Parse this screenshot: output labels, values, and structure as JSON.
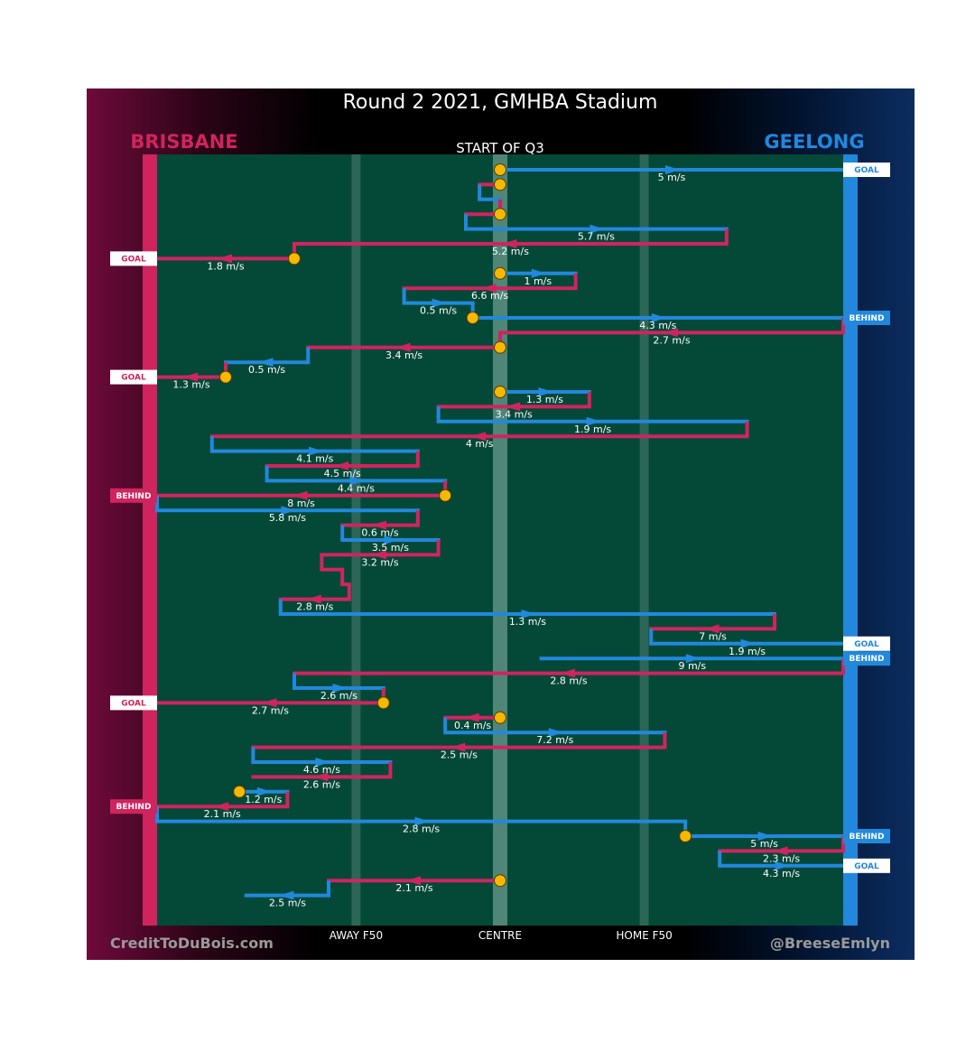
{
  "chart_data": {
    "type": "line",
    "title": "Round 2 2021, GMHBA Stadium",
    "subtitle": "START OF Q3",
    "teams": {
      "left": {
        "name": "BRISBANE",
        "color": "#d0245f"
      },
      "right": {
        "name": "GEELONG",
        "color": "#2188dc"
      }
    },
    "x_axis": {
      "range": [
        0,
        100
      ],
      "ticks": [
        {
          "label": "AWAY F50",
          "value": 29
        },
        {
          "label": "CENTRE",
          "value": 50
        },
        {
          "label": "HOME F50",
          "value": 71
        }
      ]
    },
    "credits": {
      "left": "CreditToDuBois.com",
      "right": "@BreeseEmlyn"
    },
    "colors": {
      "field": "#044838",
      "brisbane": "#d0245f",
      "geelong": "#2188dc",
      "ball": "#f5b800"
    },
    "events": [
      {
        "team": "Geelong",
        "start": 50,
        "end": 100,
        "speed": "5 m/s",
        "outcome": "GOAL"
      },
      {
        "team": "Brisbane",
        "start": 50,
        "end": 47
      },
      {
        "team": "Geelong",
        "start": 47,
        "end": 50
      },
      {
        "team": "Brisbane",
        "start": 50,
        "end": 45
      },
      {
        "team": "Geelong",
        "start": 45,
        "end": 83,
        "speed": "5.7 m/s"
      },
      {
        "team": "Brisbane",
        "start": 83,
        "end": 20,
        "speed": "5.2 m/s"
      },
      {
        "team": "Brisbane",
        "start": 20,
        "end": 0,
        "speed": "1.8 m/s",
        "outcome": "GOAL"
      },
      {
        "team": "Geelong",
        "start": 50,
        "end": 61,
        "speed": "1 m/s"
      },
      {
        "team": "Brisbane",
        "start": 61,
        "end": 36,
        "speed": "6.6 m/s"
      },
      {
        "team": "Geelong",
        "start": 36,
        "end": 46,
        "speed": "0.5 m/s"
      },
      {
        "team": "Geelong",
        "start": 46,
        "end": 100,
        "speed": "4.3 m/s",
        "outcome": "BEHIND"
      },
      {
        "team": "Brisbane",
        "start": 100,
        "end": 50,
        "speed": "2.7 m/s"
      },
      {
        "team": "Brisbane",
        "start": 50,
        "end": 22,
        "speed": "3.4 m/s"
      },
      {
        "team": "Geelong",
        "start": 22,
        "end": 10,
        "speed": "0.5 m/s"
      },
      {
        "team": "Brisbane",
        "start": 10,
        "end": 0,
        "speed": "1.3 m/s",
        "outcome": "GOAL"
      },
      {
        "team": "Geelong",
        "start": 50,
        "end": 63,
        "speed": "1.3 m/s"
      },
      {
        "team": "Brisbane",
        "start": 63,
        "end": 41,
        "speed": "3.4 m/s"
      },
      {
        "team": "Geelong",
        "start": 41,
        "end": 86,
        "speed": "1.9 m/s"
      },
      {
        "team": "Brisbane",
        "start": 86,
        "end": 8,
        "speed": "4 m/s"
      },
      {
        "team": "Geelong",
        "start": 8,
        "end": 38,
        "speed": "4.1 m/s"
      },
      {
        "team": "Brisbane",
        "start": 38,
        "end": 16,
        "speed": "4.5 m/s"
      },
      {
        "team": "Geelong",
        "start": 16,
        "end": 42,
        "speed": "4.4 m/s"
      },
      {
        "team": "Brisbane",
        "start": 42,
        "end": 0,
        "speed": "8 m/s",
        "outcome": "BEHIND"
      },
      {
        "team": "Geelong",
        "start": 0,
        "end": 38,
        "speed": "5.8 m/s"
      },
      {
        "team": "Brisbane",
        "start": 38,
        "end": 27,
        "speed": "0.6 m/s"
      },
      {
        "team": "Geelong",
        "start": 27,
        "end": 41,
        "speed": "3.5 m/s"
      },
      {
        "team": "Brisbane",
        "start": 41,
        "end": 24,
        "speed": "3.2 m/s"
      },
      {
        "team": "Brisbane",
        "start": 24,
        "end": 27
      },
      {
        "team": "Brisbane",
        "start": 27,
        "end": 28
      },
      {
        "team": "Brisbane",
        "start": 28,
        "end": 18,
        "speed": "2.8 m/s"
      },
      {
        "team": "Geelong",
        "start": 18,
        "end": 90,
        "speed": "1.3 m/s"
      },
      {
        "team": "Brisbane",
        "start": 90,
        "end": 72,
        "speed": "7 m/s"
      },
      {
        "team": "Geelong",
        "start": 72,
        "end": 100,
        "speed": "1.9 m/s",
        "outcome": "GOAL"
      },
      {
        "team": "Geelong",
        "start": 56,
        "end": 100,
        "speed": "9 m/s",
        "outcome": "BEHIND"
      },
      {
        "team": "Brisbane",
        "start": 100,
        "end": 20,
        "speed": "2.8 m/s"
      },
      {
        "team": "Geelong",
        "start": 20,
        "end": 33,
        "speed": "2.6 m/s"
      },
      {
        "team": "Brisbane",
        "start": 33,
        "end": 0,
        "speed": "2.7 m/s",
        "outcome": "GOAL"
      },
      {
        "team": "Brisbane",
        "start": 50,
        "end": 42,
        "speed": "0.4 m/s"
      },
      {
        "team": "Geelong",
        "start": 42,
        "end": 74,
        "speed": "7.2 m/s"
      },
      {
        "team": "Brisbane",
        "start": 74,
        "end": 14,
        "speed": "2.5 m/s"
      },
      {
        "team": "Geelong",
        "start": 14,
        "end": 34,
        "speed": "4.6 m/s"
      },
      {
        "team": "Brisbane",
        "start": 34,
        "end": 14,
        "speed": "2.6 m/s"
      },
      {
        "team": "Geelong",
        "start": 12,
        "end": 19,
        "speed": "1.2 m/s"
      },
      {
        "team": "Brisbane",
        "start": 19,
        "end": 0,
        "speed": "2.1 m/s",
        "outcome": "BEHIND"
      },
      {
        "team": "Geelong",
        "start": 0,
        "end": 77,
        "speed": "2.8 m/s"
      },
      {
        "team": "Geelong",
        "start": 77,
        "end": 100,
        "speed": "5 m/s",
        "outcome": "BEHIND"
      },
      {
        "team": "Brisbane",
        "start": 100,
        "end": 82,
        "speed": "2.3 m/s"
      },
      {
        "team": "Geelong",
        "start": 82,
        "end": 100,
        "speed": "4.3 m/s",
        "outcome": "GOAL"
      },
      {
        "team": "Brisbane",
        "start": 50,
        "end": 25,
        "speed": "2.1 m/s"
      },
      {
        "team": "Geelong",
        "start": 25,
        "end": 13,
        "speed": "2.5 m/s"
      }
    ],
    "ball_ups": [
      {
        "x": 50,
        "event": 0
      },
      {
        "x": 50,
        "event": 1
      },
      {
        "x": 50,
        "event": 3
      },
      {
        "x": 20,
        "event": 6
      },
      {
        "x": 50,
        "event": 7
      },
      {
        "x": 46,
        "event": 10
      },
      {
        "x": 50,
        "event": 12
      },
      {
        "x": 10,
        "event": 14
      },
      {
        "x": 50,
        "event": 15
      },
      {
        "x": 42,
        "event": 22
      },
      {
        "x": 33,
        "event": 36
      },
      {
        "x": 50,
        "event": 37
      },
      {
        "x": 12,
        "event": 42
      },
      {
        "x": 77,
        "event": 45
      },
      {
        "x": 50,
        "event": 48
      }
    ]
  }
}
